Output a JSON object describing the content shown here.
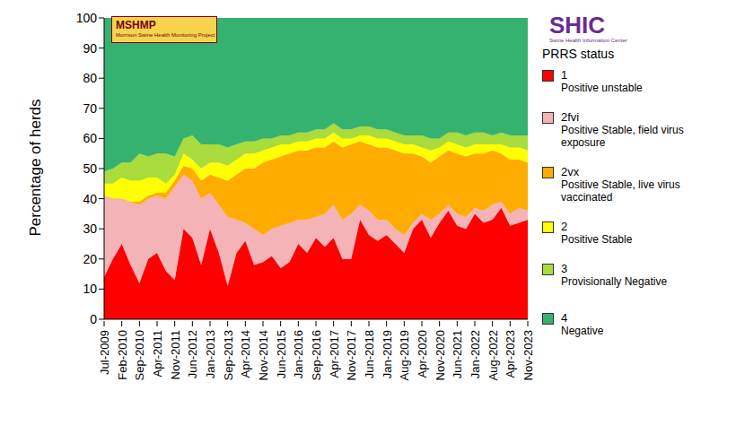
{
  "chart_data": {
    "type": "area",
    "stacked": true,
    "grid": false,
    "legend": "right",
    "y_label": "Percentage of herds",
    "legend_title": "PRRS status",
    "annotations": [
      "MSHMP",
      "Morrison Swine Health Monitoring Project",
      "SHIC",
      "Swine Health Information Center"
    ],
    "categories": [
      "Jul-2009",
      null,
      "Feb-2010",
      null,
      "Sep-2010",
      null,
      "Apr-2011",
      null,
      "Nov-2011",
      null,
      "Jun-2012",
      null,
      "Jan-2013",
      null,
      "Sep-2013",
      null,
      "Apr-2014",
      null,
      "Nov-2014",
      null,
      "Jun-2015",
      null,
      "Jan-2016",
      null,
      "Sep-2016",
      null,
      "Apr-2017",
      null,
      "Nov-2017",
      null,
      "Jun-2018",
      null,
      "Jan-2019",
      null,
      "Aug-2019",
      null,
      "Apr-2020",
      null,
      "Nov-2020",
      null,
      "Jun-2021",
      null,
      "Jan-2022",
      null,
      "Aug-2022",
      null,
      "Apr-2023",
      null,
      "Nov-2023"
    ],
    "ylim": [
      0,
      100
    ],
    "yticks": [
      0,
      10,
      20,
      30,
      40,
      50,
      60,
      70,
      80,
      90,
      100
    ],
    "series": [
      {
        "name": "1",
        "description": "Positive unstable",
        "color": "#ff0000",
        "values": [
          14,
          20,
          25,
          18,
          12,
          20,
          22,
          16,
          13,
          30,
          27,
          18,
          30,
          22,
          11,
          22,
          26,
          18,
          19,
          21,
          17,
          19,
          25,
          22,
          27,
          24,
          27,
          20,
          20,
          33,
          28,
          26,
          28,
          25,
          22,
          30,
          33,
          27,
          32,
          36,
          31,
          30,
          35,
          32,
          33,
          37,
          31,
          32,
          33
        ]
      },
      {
        "name": "2fvi",
        "description": "Positive Stable, field virus exposure",
        "color": "#f4b3b6",
        "values": [
          27,
          20,
          15,
          21,
          26,
          20,
          19,
          24,
          31,
          18,
          19,
          22,
          12,
          16,
          23,
          11,
          6,
          12,
          9,
          9,
          14,
          13,
          8,
          11,
          7,
          11,
          11,
          13,
          15,
          5,
          8,
          7,
          5,
          5,
          6,
          2,
          2,
          6,
          3,
          2,
          4,
          4,
          2,
          4,
          5,
          2,
          4,
          5,
          3
        ]
      },
      {
        "name": "2vx",
        "description": "Positive Stable, live virus vaccinated",
        "color": "#ffac00",
        "values": [
          0,
          0,
          0,
          0,
          1,
          1,
          1,
          2,
          2,
          3,
          4,
          6,
          6,
          9,
          12,
          15,
          18,
          20,
          24,
          23,
          23,
          23,
          23,
          23,
          23,
          22,
          21,
          24,
          23,
          21,
          22,
          24,
          24,
          26,
          27,
          23,
          19,
          19,
          19,
          18,
          20,
          20,
          18,
          19,
          18,
          16,
          18,
          16,
          16
        ]
      },
      {
        "name": "2",
        "description": "Positive Stable",
        "color": "#ffff00",
        "values": [
          4,
          5,
          7,
          7,
          7,
          6,
          5,
          3,
          2,
          4,
          3,
          4,
          4,
          5,
          5,
          5,
          5,
          5,
          4,
          4,
          4,
          3,
          3,
          3,
          3,
          3,
          3,
          3,
          2,
          2,
          3,
          3,
          3,
          3,
          3,
          3,
          3,
          4,
          3,
          3,
          3,
          3,
          3,
          3,
          2,
          3,
          4,
          4,
          4
        ]
      },
      {
        "name": "3",
        "description": "Provisionally Negative",
        "color": "#a9dc3c",
        "values": [
          4,
          5,
          5,
          6,
          9,
          7,
          8,
          10,
          6,
          5,
          8,
          8,
          6,
          6,
          6,
          5,
          4,
          4,
          4,
          3,
          3,
          3,
          3,
          3,
          3,
          3,
          3,
          3,
          3,
          3,
          3,
          3,
          3,
          3,
          3,
          3,
          4,
          4,
          3,
          3,
          4,
          4,
          4,
          4,
          3,
          4,
          4,
          4,
          5
        ]
      },
      {
        "name": "4",
        "description": "Negative",
        "color": "#36b270",
        "values": [
          51,
          50,
          48,
          48,
          45,
          46,
          45,
          45,
          46,
          40,
          39,
          42,
          42,
          42,
          43,
          42,
          41,
          41,
          40,
          40,
          39,
          39,
          38,
          38,
          37,
          37,
          35,
          37,
          37,
          36,
          36,
          37,
          37,
          38,
          39,
          39,
          39,
          40,
          40,
          38,
          38,
          39,
          38,
          38,
          39,
          38,
          39,
          39,
          39
        ]
      }
    ]
  }
}
